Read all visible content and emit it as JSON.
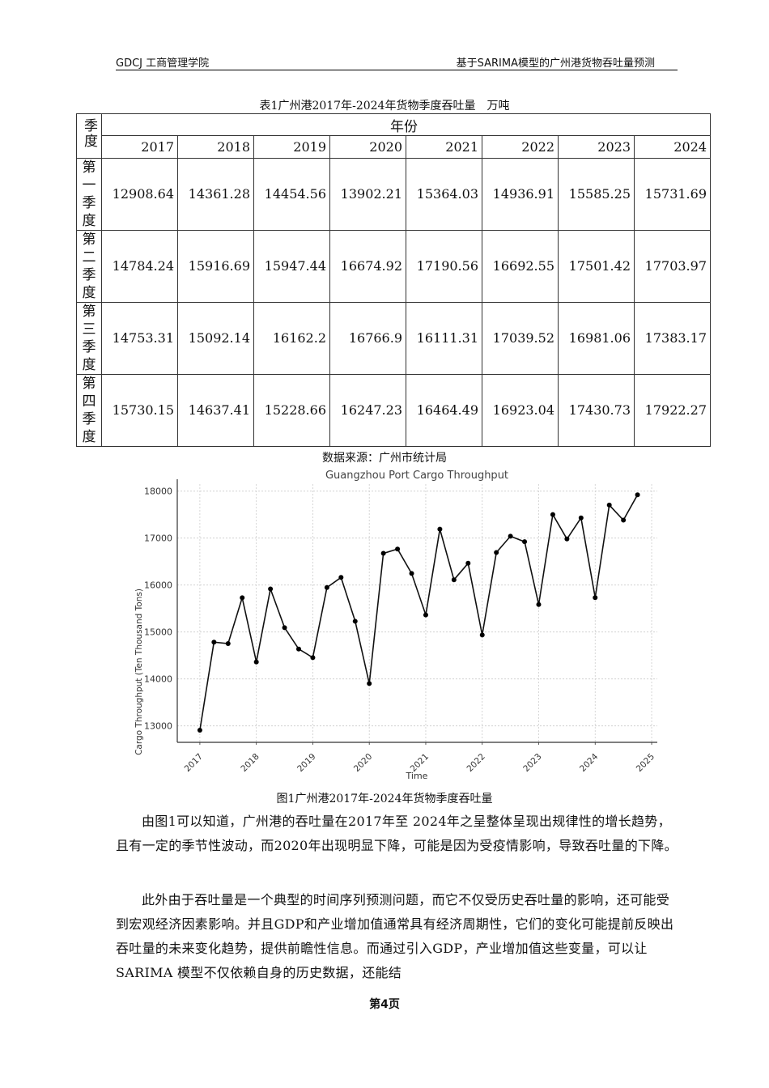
{
  "header": {
    "left": "GDCJ 工商管理学院",
    "right": "基于SARIMA模型的广州港货物吞吐量预测"
  },
  "table": {
    "caption": "表1广州港2017年-2024年货物季度吞吐量　万吨",
    "row_header_label": "季度",
    "year_group_label": "年份",
    "years": [
      "2017",
      "2018",
      "2019",
      "2020",
      "2021",
      "2022",
      "2023",
      "2024"
    ],
    "rows": [
      {
        "label": "第一季度",
        "values": [
          "12908.64",
          "14361.28",
          "14454.56",
          "13902.21",
          "15364.03",
          "14936.91",
          "15585.25",
          "15731.69"
        ]
      },
      {
        "label": "第二季度",
        "values": [
          "14784.24",
          "15916.69",
          "15947.44",
          "16674.92",
          "17190.56",
          "16692.55",
          "17501.42",
          "17703.97"
        ]
      },
      {
        "label": "第三季度",
        "values": [
          "14753.31",
          "15092.14",
          "16162.2",
          "16766.9",
          "16111.31",
          "17039.52",
          "16981.06",
          "17383.17"
        ]
      },
      {
        "label": "第四季度",
        "values": [
          "15730.15",
          "14637.41",
          "15228.66",
          "16247.23",
          "16464.49",
          "16923.04",
          "17430.73",
          "17922.27"
        ]
      }
    ],
    "source": "数据来源：广州市统计局"
  },
  "chart_data": {
    "type": "line",
    "title": "Guangzhou Port Cargo Throughput",
    "xlabel": "Time",
    "ylabel": "Cargo Throughput (Ten Thousand Tons)",
    "x_ticks": [
      "2017",
      "2018",
      "2019",
      "2020",
      "2021",
      "2022",
      "2023",
      "2024",
      "2025"
    ],
    "y_ticks": [
      13000,
      14000,
      15000,
      16000,
      17000,
      18000
    ],
    "xlim": [
      2016.6,
      2025.1
    ],
    "ylim": [
      12650,
      18150
    ],
    "grid": true,
    "legend": "none",
    "x": [
      2017.0,
      2017.25,
      2017.5,
      2017.75,
      2018.0,
      2018.25,
      2018.5,
      2018.75,
      2019.0,
      2019.25,
      2019.5,
      2019.75,
      2020.0,
      2020.25,
      2020.5,
      2020.75,
      2021.0,
      2021.25,
      2021.5,
      2021.75,
      2022.0,
      2022.25,
      2022.5,
      2022.75,
      2023.0,
      2023.25,
      2023.5,
      2023.75,
      2024.0,
      2024.25,
      2024.5,
      2024.75
    ],
    "series": [
      {
        "name": "Cargo Throughput",
        "values": [
          12908.64,
          14784.24,
          14753.31,
          15730.15,
          14361.28,
          15916.69,
          15092.14,
          14637.41,
          14454.56,
          15947.44,
          16162.2,
          15228.66,
          13902.21,
          16674.92,
          16766.9,
          16247.23,
          15364.03,
          17190.56,
          16111.31,
          16464.49,
          14936.91,
          16692.55,
          17039.52,
          16923.04,
          15585.25,
          17501.42,
          16981.06,
          17430.73,
          15731.69,
          17703.97,
          17383.17,
          17922.27
        ]
      }
    ]
  },
  "figure": {
    "caption": "图1广州港2017年-2024年货物季度吞吐量"
  },
  "body": {
    "paragraphs": [
      "由图1可以知道，广州港的吞吐量在2017年至 2024年之呈整体呈现出规律性的增长趋势，且有一定的季节性波动，而2020年出现明显下降，可能是因为受疫情影响，导致吞吐量的下降。",
      "此外由于吞吐量是一个典型的时间序列预测问题，而它不仅受历史吞吐量的影响，还可能受到宏观经济因素影响。并且GDP和产业增加值通常具有经济周期性，它们的变化可能提前反映出吞吐量的未来变化趋势，提供前瞻性信息。而通过引入GDP，产业增加值这些变量，可以让SARIMA 模型不仅依赖自身的历史数据，还能结"
    ]
  },
  "footer": {
    "page": "第4页"
  }
}
